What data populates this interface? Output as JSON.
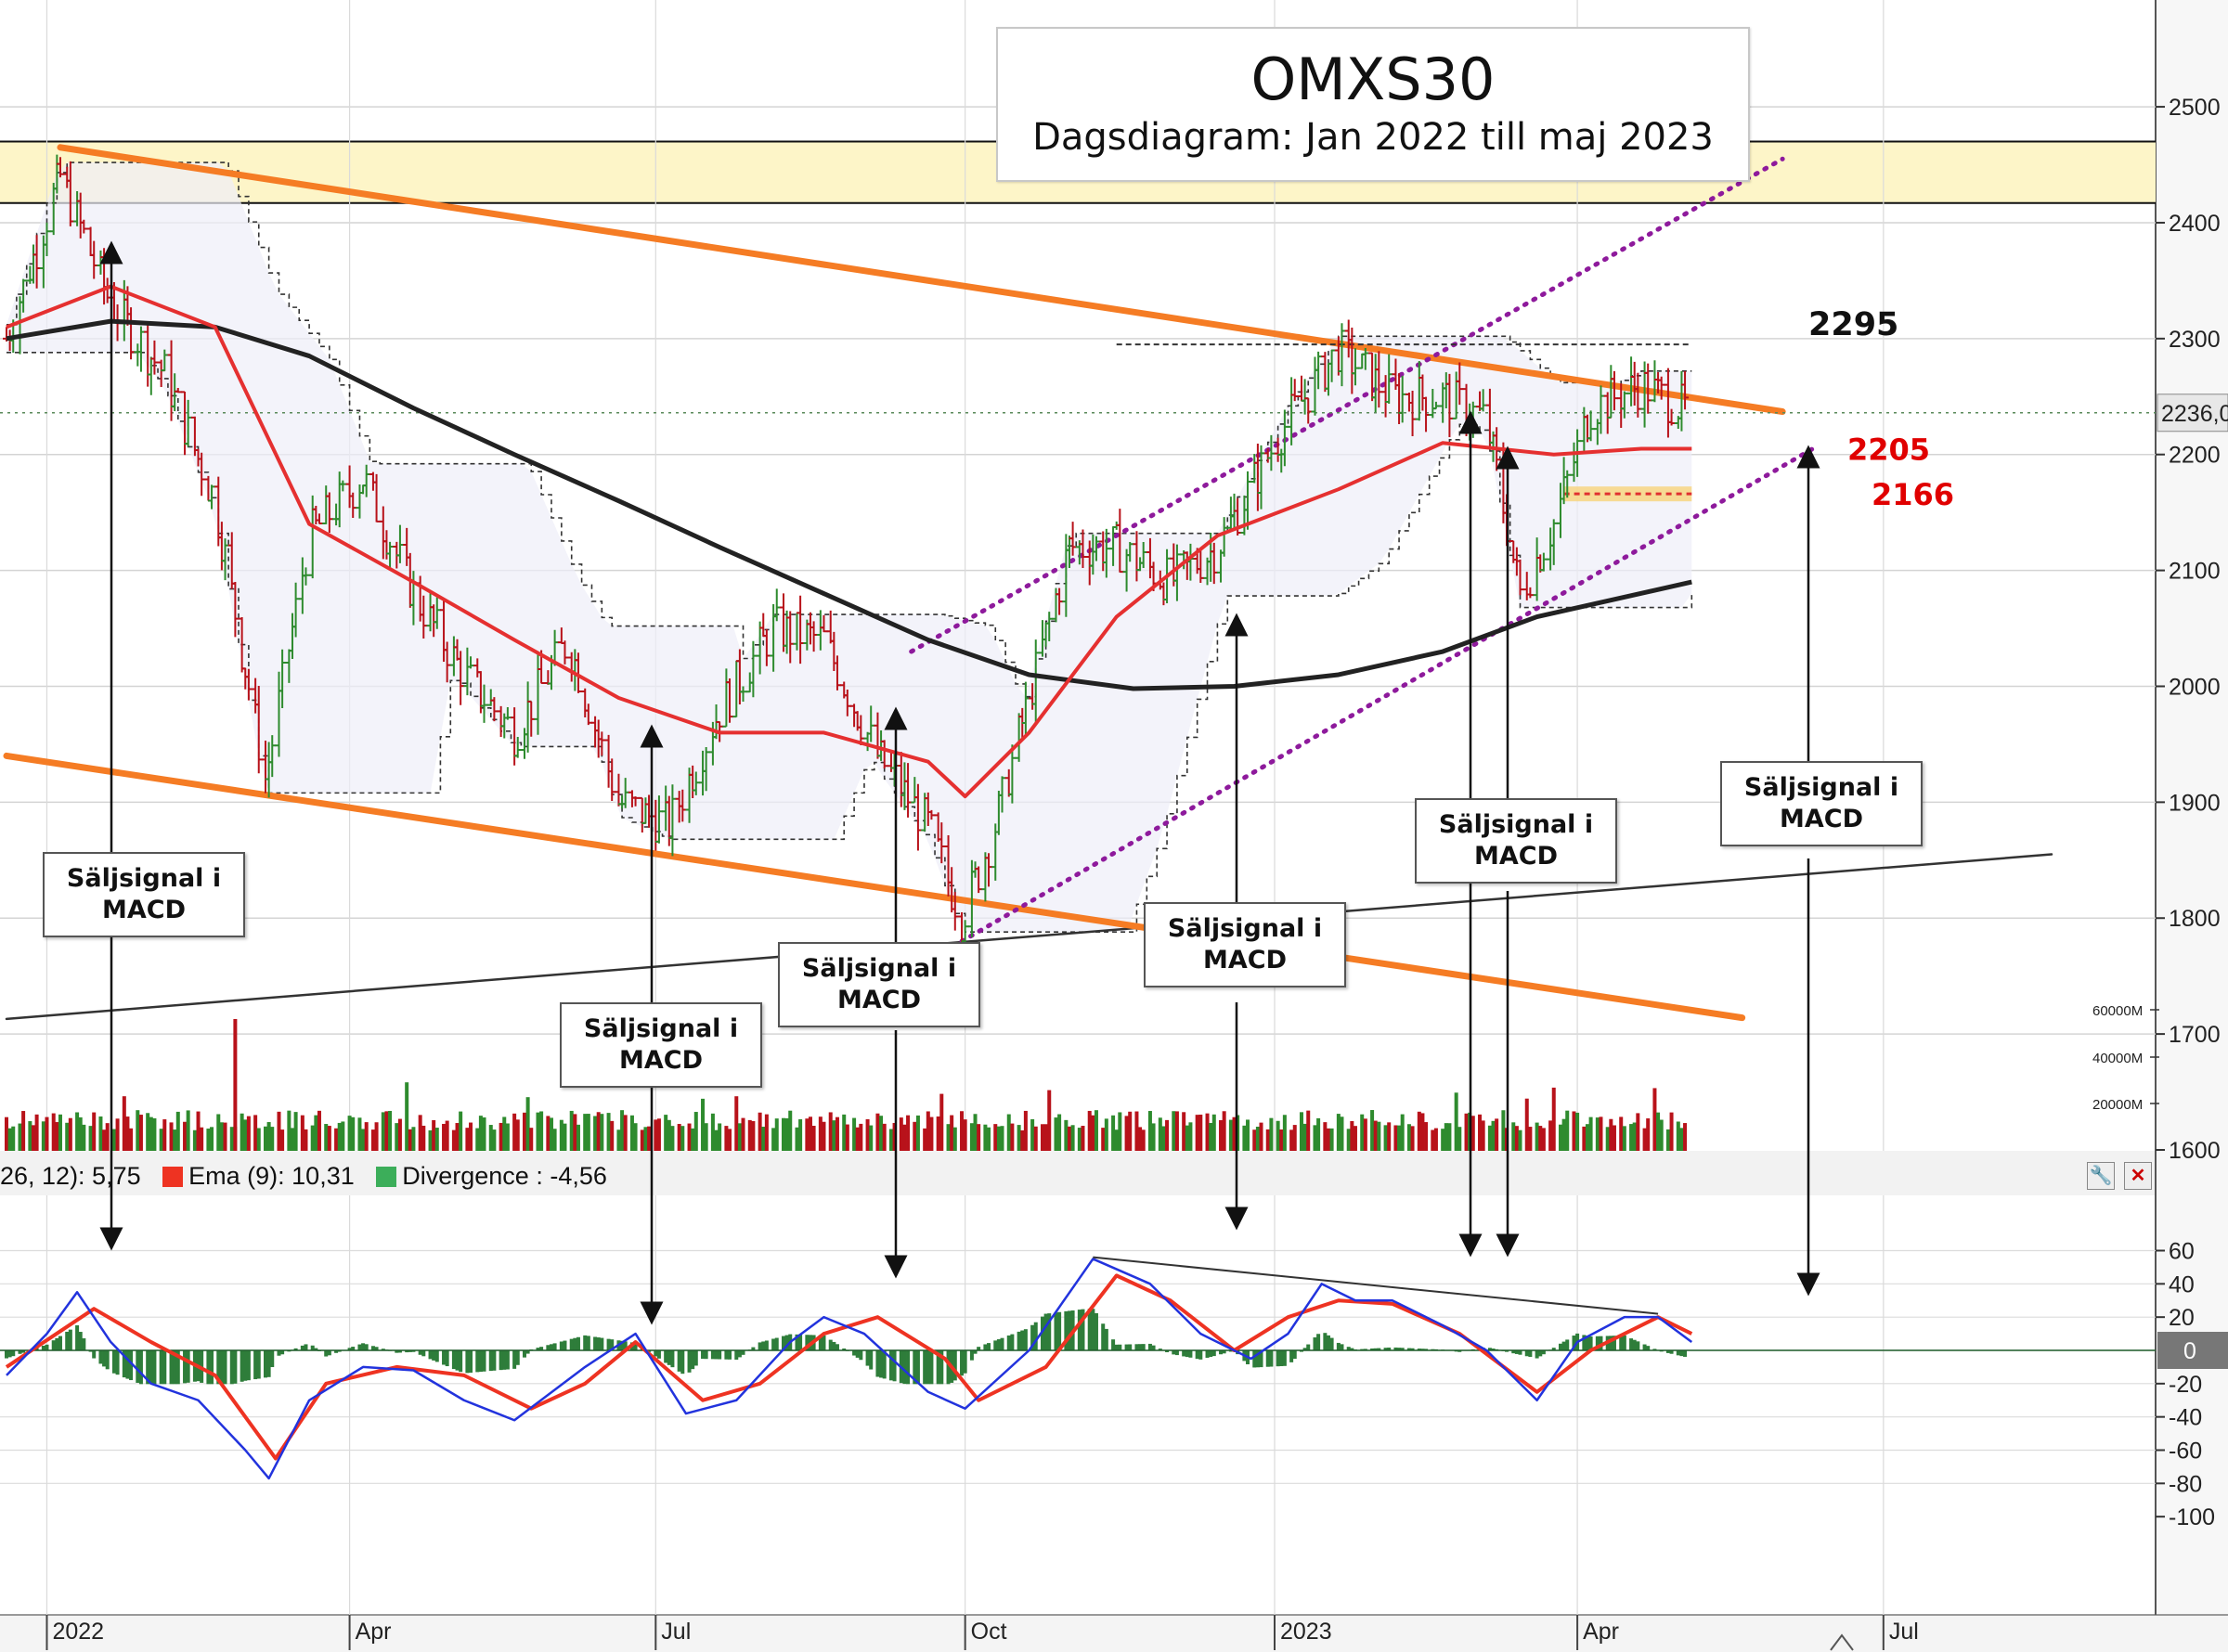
{
  "title": "OMXS30",
  "subtitle": "Dagsdiagram:  Jan 2022 till maj 2023",
  "colors": {
    "price_up": "#2e8b2e",
    "price_down": "#b8121a",
    "ema_fast": "#e53030",
    "ma_slow": "#222222",
    "trend_orange": "#f57c24",
    "channel_purple": "#8e1a9c",
    "macd_line": "#2233dd",
    "signal_line": "#ee3322",
    "divergence": "#2e7d3a",
    "resistance_zone": "#fdf5c8"
  },
  "annotations": {
    "level_high": "2295",
    "level_mid": "2205",
    "level_low": "2166",
    "price_last": "2236,0",
    "callout_line1": "Säljsignal i",
    "callout_line2": "MACD"
  },
  "price_axis": {
    "ticks": [
      "2500",
      "2400",
      "2300",
      "2200",
      "2100",
      "2000",
      "1900",
      "1800",
      "1700",
      "1600"
    ],
    "volume_ticks": [
      "60000M",
      "40000M",
      "20000M"
    ]
  },
  "macd_axis": {
    "ticks": [
      "60",
      "40",
      "20",
      "0",
      "-20",
      "-40",
      "-60",
      "-80",
      "-100"
    ]
  },
  "time_axis": {
    "ticks": [
      "2022",
      "Apr",
      "Jul",
      "Oct",
      "2023",
      "Apr",
      "Jul"
    ]
  },
  "legend": {
    "macd_text": "26, 12): 5,75",
    "ema_text": "Ema (9): 10,31",
    "div_text": "Divergence : -4,56"
  },
  "chart_data": {
    "type": "line",
    "title": "OMXS30",
    "subtitle": "Dagsdiagram:  Jan 2022 till maj 2023",
    "ylim": [
      1600,
      2550
    ],
    "macd_ylim": [
      -100,
      60
    ],
    "close": {
      "x": [
        "2021-12-20",
        "2022-01-05",
        "2022-01-20",
        "2022-02-05",
        "2022-02-20",
        "2022-03-07",
        "2022-03-20",
        "2022-04-05",
        "2022-04-20",
        "2022-05-05",
        "2022-05-20",
        "2022-06-05",
        "2022-06-20",
        "2022-07-05",
        "2022-07-20",
        "2022-08-05",
        "2022-08-20",
        "2022-09-05",
        "2022-09-20",
        "2022-09-30",
        "2022-10-10",
        "2022-10-20",
        "2022-11-01",
        "2022-11-15",
        "2022-12-01",
        "2022-12-15",
        "2023-01-05",
        "2023-01-20",
        "2023-02-05",
        "2023-02-20",
        "2023-03-05",
        "2023-03-15",
        "2023-03-25",
        "2023-04-05",
        "2023-04-20",
        "2023-05-05"
      ],
      "values": [
        2300,
        2440,
        2330,
        2270,
        2160,
        1920,
        2130,
        2180,
        2080,
        2010,
        1960,
        2040,
        1900,
        1880,
        1980,
        2050,
        2040,
        1940,
        1880,
        1800,
        1880,
        1990,
        2120,
        2120,
        2090,
        2120,
        2230,
        2290,
        2250,
        2250,
        2230,
        2080,
        2140,
        2240,
        2260,
        2236
      ]
    },
    "ema_red": {
      "x": [
        "2021-12-20",
        "2022-01-20",
        "2022-02-20",
        "2022-03-20",
        "2022-04-20",
        "2022-05-20",
        "2022-06-20",
        "2022-07-20",
        "2022-08-20",
        "2022-09-20",
        "2022-10-01",
        "2022-10-20",
        "2022-11-15",
        "2022-12-15",
        "2023-01-20",
        "2023-02-20",
        "2023-03-25",
        "2023-04-20",
        "2023-05-05"
      ],
      "values": [
        2310,
        2345,
        2310,
        2140,
        2090,
        2040,
        1990,
        1960,
        1960,
        1935,
        1905,
        1960,
        2060,
        2130,
        2170,
        2210,
        2200,
        2205,
        2205
      ]
    },
    "ma_black": {
      "x": [
        "2021-12-20",
        "2022-01-20",
        "2022-02-20",
        "2022-03-20",
        "2022-04-20",
        "2022-05-20",
        "2022-06-20",
        "2022-07-20",
        "2022-08-20",
        "2022-09-20",
        "2022-10-20",
        "2022-11-20",
        "2022-12-20",
        "2023-01-20",
        "2023-02-20",
        "2023-03-20",
        "2023-05-05"
      ],
      "values": [
        2300,
        2315,
        2310,
        2285,
        2240,
        2200,
        2160,
        2120,
        2080,
        2040,
        2010,
        1998,
        2000,
        2010,
        2030,
        2060,
        2090
      ]
    },
    "macd": {
      "x": [
        "2021-12-20",
        "2022-01-01",
        "2022-01-10",
        "2022-01-20",
        "2022-02-01",
        "2022-02-15",
        "2022-03-01",
        "2022-03-08",
        "2022-03-20",
        "2022-04-05",
        "2022-04-20",
        "2022-05-05",
        "2022-05-20",
        "2022-06-10",
        "2022-06-25",
        "2022-07-10",
        "2022-07-25",
        "2022-08-10",
        "2022-08-20",
        "2022-09-01",
        "2022-09-20",
        "2022-10-01",
        "2022-10-20",
        "2022-11-08",
        "2022-11-25",
        "2022-12-10",
        "2022-12-25",
        "2023-01-05",
        "2023-01-15",
        "2023-01-25",
        "2023-02-05",
        "2023-02-20",
        "2023-03-05",
        "2023-03-20",
        "2023-04-01",
        "2023-04-15",
        "2023-04-25",
        "2023-05-05"
      ],
      "values": [
        -15,
        10,
        35,
        5,
        -20,
        -30,
        -60,
        -77,
        -30,
        -10,
        -12,
        -30,
        -42,
        -10,
        10,
        -38,
        -30,
        5,
        20,
        10,
        -25,
        -35,
        0,
        55,
        40,
        10,
        -5,
        10,
        40,
        30,
        30,
        15,
        0,
        -30,
        5,
        20,
        20,
        5
      ]
    },
    "signal": {
      "x": [
        "2021-12-20",
        "2022-01-15",
        "2022-02-01",
        "2022-02-20",
        "2022-03-10",
        "2022-03-25",
        "2022-04-15",
        "2022-05-05",
        "2022-05-25",
        "2022-06-10",
        "2022-06-25",
        "2022-07-15",
        "2022-08-01",
        "2022-08-20",
        "2022-09-05",
        "2022-09-25",
        "2022-10-05",
        "2022-10-25",
        "2022-11-15",
        "2022-12-01",
        "2022-12-20",
        "2023-01-05",
        "2023-01-20",
        "2023-02-05",
        "2023-02-25",
        "2023-03-20",
        "2023-04-05",
        "2023-04-25",
        "2023-05-05"
      ],
      "values": [
        -10,
        25,
        5,
        -15,
        -65,
        -20,
        -10,
        -15,
        -35,
        -20,
        5,
        -30,
        -20,
        10,
        20,
        -5,
        -30,
        -10,
        45,
        30,
        0,
        20,
        30,
        28,
        10,
        -25,
        0,
        20,
        10
      ]
    },
    "divergence_hist": {
      "x_range": [
        "2021-12-20",
        "2023-05-05"
      ],
      "ylim": [
        -20,
        25
      ]
    },
    "trend_lines": {
      "upper_orange": {
        "from": [
          "2022-01-05",
          2465
        ],
        "to": [
          "2023-06-01",
          2237
        ]
      },
      "lower_orange": {
        "from": [
          "2021-12-20",
          1940
        ],
        "to": [
          "2023-05-20",
          1714
        ]
      },
      "channel_upper": {
        "from": [
          "2022-09-15",
          2030
        ],
        "to": [
          "2023-06-01",
          2455
        ]
      },
      "channel_lower": {
        "from": [
          "2022-09-30",
          1780
        ],
        "to": [
          "2023-06-10",
          2205
        ]
      },
      "long_black": {
        "from": [
          "2021-12-20",
          1713
        ],
        "to": [
          "2023-08-20",
          1855
        ]
      },
      "macd_trend": {
        "from": [
          "2022-11-08",
          56
        ],
        "to": [
          "2023-04-25",
          22
        ]
      }
    },
    "horizontal_levels": [
      2470,
      2417,
      2295,
      2236,
      2205,
      2166
    ],
    "callouts": [
      {
        "label": "Säljsignal i MACD",
        "date": "2022-01-07"
      },
      {
        "label": "Säljsignal i MACD",
        "date": "2022-05-28"
      },
      {
        "label": "Säljsignal i MACD",
        "date": "2022-08-16"
      },
      {
        "label": "Säljsignal i MACD",
        "date": "2022-11-08"
      },
      {
        "label": "Säljsignal i MACD",
        "date": "2023-01-25"
      },
      {
        "label": "Säljsignal i MACD",
        "date": "2023-04-25"
      }
    ]
  }
}
